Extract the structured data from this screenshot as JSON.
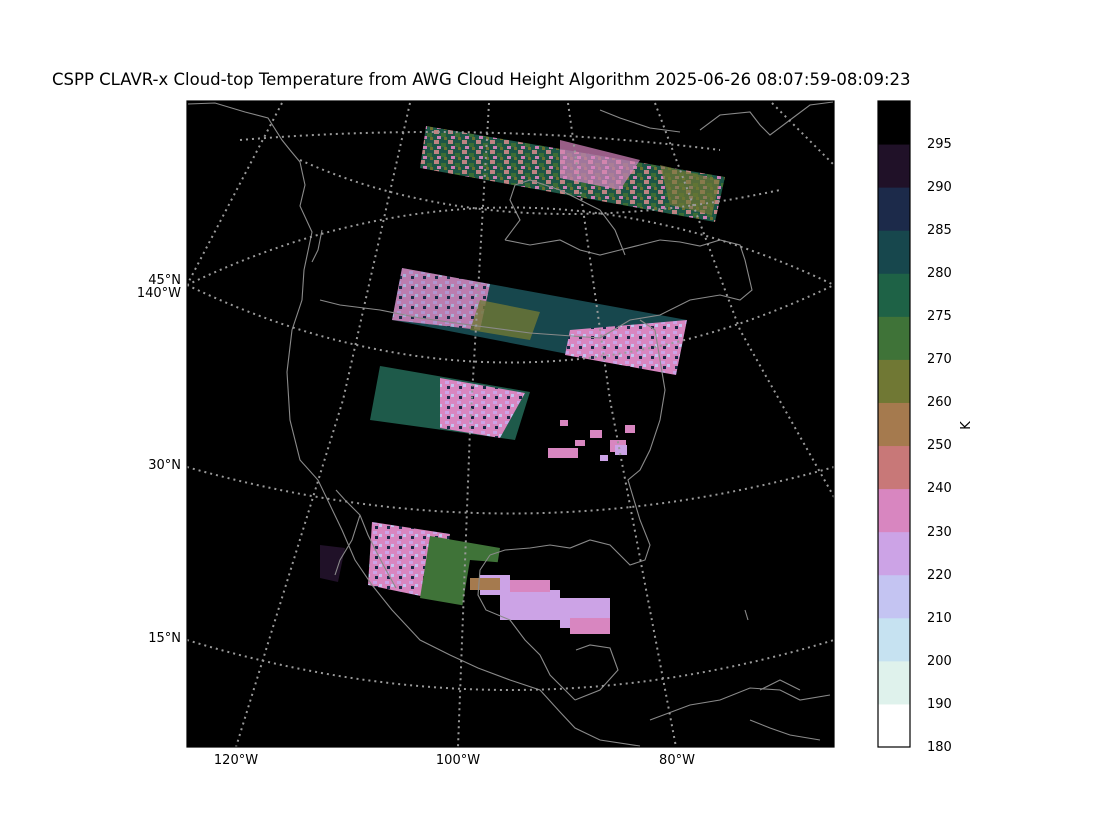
{
  "title": "CSPP CLAVR-x Cloud-top Temperature from AWG Cloud Height Algorithm 2025-06-26 08:07:59-08:09:23",
  "map": {
    "lat_labels": [
      {
        "text": "45°N"
      },
      {
        "text": "140°W"
      },
      {
        "text": "30°N"
      },
      {
        "text": "15°N"
      }
    ],
    "lon_labels": [
      {
        "text": "120°W"
      },
      {
        "text": "100°W"
      },
      {
        "text": "80°W"
      }
    ],
    "background_color": "#000000",
    "coastline_color": "#888888",
    "gridline_color": "#999999",
    "gridline_style": "dotted"
  },
  "colorbar": {
    "label": "K",
    "ticks": [
      "180",
      "190",
      "200",
      "210",
      "220",
      "230",
      "240",
      "250",
      "260",
      "270",
      "275",
      "280",
      "285",
      "290",
      "295"
    ],
    "colors": [
      "#ffffff",
      "#dff2ec",
      "#c6e2f1",
      "#c4c4f2",
      "#cca3e6",
      "#d886c0",
      "#c87878",
      "#a57a4e",
      "#707834",
      "#3f7338",
      "#1e6246",
      "#17474d",
      "#1c2a4a",
      "#201128",
      "#000000"
    ]
  },
  "swaths": [
    {
      "id": "swath-1",
      "label": "northern swath"
    },
    {
      "id": "swath-2",
      "label": "central swath"
    },
    {
      "id": "swath-3",
      "label": "southern-central swath"
    },
    {
      "id": "swath-4",
      "label": "southern swath"
    }
  ]
}
